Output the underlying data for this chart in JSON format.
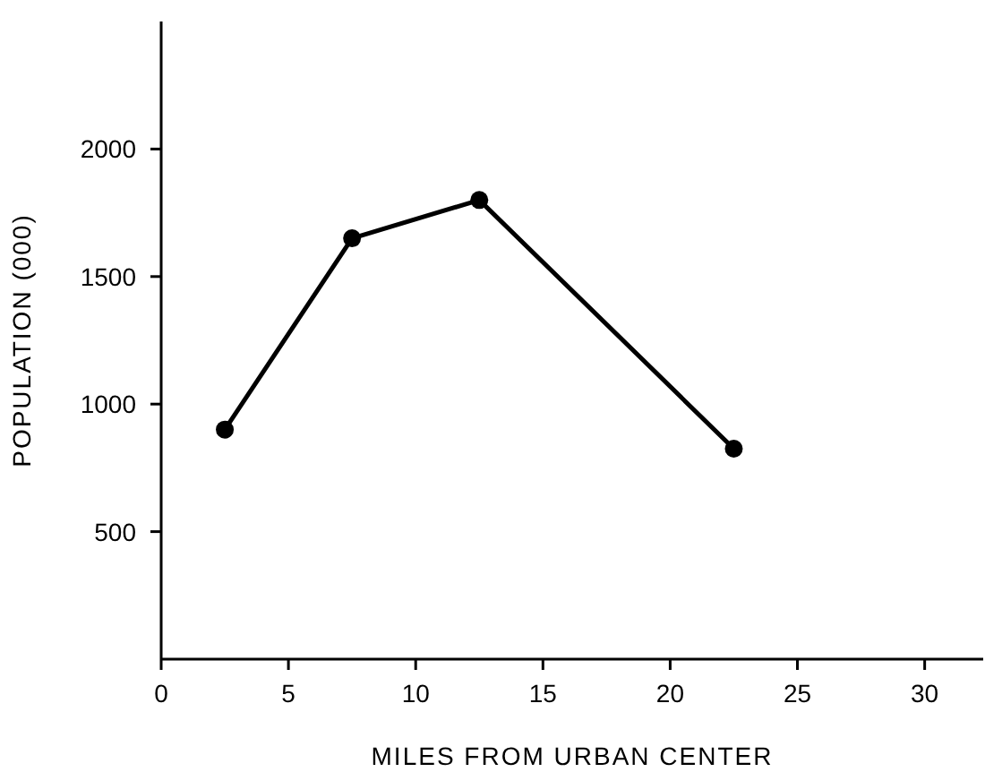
{
  "chart_data": {
    "type": "line",
    "xlabel": "MILES FROM URBAN CENTER",
    "ylabel": "POPULATION (000)",
    "x": [
      2.5,
      7.5,
      12.5,
      22.5
    ],
    "values": [
      900,
      1650,
      1800,
      825
    ],
    "color": "#000000",
    "marker": "circle",
    "line_style": "solid",
    "grid": false,
    "legend": false,
    "xlim": [
      0,
      32.3
    ],
    "xticks": [
      0,
      5,
      10,
      15,
      20,
      25,
      30
    ],
    "ylim": [
      0,
      2500
    ],
    "yticks": [
      500,
      1000,
      1500,
      2000
    ]
  }
}
